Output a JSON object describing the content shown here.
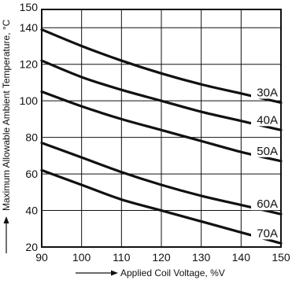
{
  "chart_data": {
    "type": "line",
    "xlabel": "Applied Coil Voltage, %V",
    "ylabel": "Maximum Allowable Ambient Temperature, °C",
    "xlim": [
      90,
      150
    ],
    "ylim": [
      20,
      150
    ],
    "xticks": [
      90,
      100,
      110,
      120,
      130,
      140,
      150
    ],
    "yticks": [
      20,
      40,
      60,
      80,
      100,
      120,
      140,
      150
    ],
    "grid": true,
    "legend": "inline labels at right end of each curve",
    "series": [
      {
        "name": "30A",
        "x": [
          90,
          100,
          110,
          120,
          130,
          140,
          150
        ],
        "y": [
          139,
          130,
          122,
          115,
          109,
          104,
          99
        ]
      },
      {
        "name": "40A",
        "x": [
          90,
          100,
          110,
          120,
          130,
          140,
          150
        ],
        "y": [
          122,
          113,
          106,
          100,
          94,
          89,
          84
        ]
      },
      {
        "name": "50A",
        "x": [
          90,
          100,
          110,
          120,
          130,
          140,
          150
        ],
        "y": [
          105,
          97,
          90,
          84,
          78,
          72,
          67
        ]
      },
      {
        "name": "60A",
        "x": [
          90,
          100,
          110,
          120,
          130,
          140,
          150
        ],
        "y": [
          77,
          69,
          61,
          54,
          48,
          43,
          38
        ]
      },
      {
        "name": "70A",
        "x": [
          90,
          100,
          110,
          120,
          130,
          140,
          150
        ],
        "y": [
          62,
          54,
          46,
          40,
          34,
          28,
          22
        ]
      }
    ],
    "colors": {
      "line": "#111111",
      "grid": "#111111",
      "background": "#ffffff"
    }
  }
}
